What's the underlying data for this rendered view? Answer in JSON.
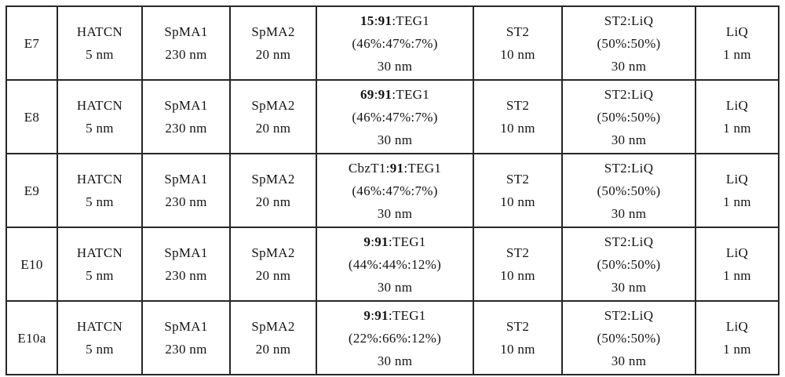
{
  "table": {
    "rows": [
      {
        "label": "E7",
        "cells": [
          {
            "lines": [
              "HATCN",
              "5 nm"
            ]
          },
          {
            "lines": [
              "SpMA1",
              "230 nm"
            ]
          },
          {
            "lines": [
              "SpMA2",
              "20 nm"
            ]
          },
          {
            "lines": [
              [
                {
                  "t": "15",
                  "b": true
                },
                {
                  "t": ":"
                },
                {
                  "t": "91",
                  "b": true
                },
                {
                  "t": ":TEG1"
                }
              ],
              "(46%:47%:7%)",
              "30 nm"
            ]
          },
          {
            "lines": [
              "ST2",
              "10 nm"
            ]
          },
          {
            "lines": [
              "ST2:LiQ",
              "(50%:50%)",
              "30 nm"
            ]
          },
          {
            "lines": [
              "LiQ",
              "1 nm"
            ]
          }
        ]
      },
      {
        "label": "E8",
        "cells": [
          {
            "lines": [
              "HATCN",
              "5 nm"
            ]
          },
          {
            "lines": [
              "SpMA1",
              "230 nm"
            ]
          },
          {
            "lines": [
              "SpMA2",
              "20 nm"
            ]
          },
          {
            "lines": [
              [
                {
                  "t": "69",
                  "b": true
                },
                {
                  "t": ":"
                },
                {
                  "t": "91",
                  "b": true
                },
                {
                  "t": ":TEG1"
                }
              ],
              "(46%:47%:7%)",
              "30 nm"
            ]
          },
          {
            "lines": [
              "ST2",
              "10 nm"
            ]
          },
          {
            "lines": [
              "ST2:LiQ",
              "(50%:50%)",
              "30 nm"
            ]
          },
          {
            "lines": [
              "LiQ",
              "1 nm"
            ]
          }
        ]
      },
      {
        "label": "E9",
        "cells": [
          {
            "lines": [
              "HATCN",
              "5 nm"
            ]
          },
          {
            "lines": [
              "SpMA1",
              "230 nm"
            ]
          },
          {
            "lines": [
              "SpMA2",
              "20 nm"
            ]
          },
          {
            "lines": [
              [
                {
                  "t": "CbzT1:"
                },
                {
                  "t": "91",
                  "b": true
                },
                {
                  "t": ":TEG1"
                }
              ],
              "(46%:47%:7%)",
              "30 nm"
            ]
          },
          {
            "lines": [
              "ST2",
              "10 nm"
            ]
          },
          {
            "lines": [
              "ST2:LiQ",
              "(50%:50%)",
              "30 nm"
            ]
          },
          {
            "lines": [
              "LiQ",
              "1 nm"
            ]
          }
        ]
      },
      {
        "label": "E10",
        "cells": [
          {
            "lines": [
              "HATCN",
              "5 nm"
            ]
          },
          {
            "lines": [
              "SpMA1",
              "230 nm"
            ]
          },
          {
            "lines": [
              "SpMA2",
              "20 nm"
            ]
          },
          {
            "lines": [
              [
                {
                  "t": "9",
                  "b": true
                },
                {
                  "t": ":"
                },
                {
                  "t": "91",
                  "b": true
                },
                {
                  "t": ":TEG1"
                }
              ],
              "(44%:44%:12%)",
              "30 nm"
            ]
          },
          {
            "lines": [
              "ST2",
              "10 nm"
            ]
          },
          {
            "lines": [
              "ST2:LiQ",
              "(50%:50%)",
              "30 nm"
            ]
          },
          {
            "lines": [
              "LiQ",
              "1 nm"
            ]
          }
        ]
      },
      {
        "label": "E10a",
        "cells": [
          {
            "lines": [
              "HATCN",
              "5 nm"
            ]
          },
          {
            "lines": [
              "SpMA1",
              "230 nm"
            ]
          },
          {
            "lines": [
              "SpMA2",
              "20 nm"
            ]
          },
          {
            "lines": [
              [
                {
                  "t": "9",
                  "b": true
                },
                {
                  "t": ":"
                },
                {
                  "t": "91",
                  "b": true
                },
                {
                  "t": ":TEG1"
                }
              ],
              "(22%:66%:12%)",
              "30 nm"
            ]
          },
          {
            "lines": [
              "ST2",
              "10 nm"
            ]
          },
          {
            "lines": [
              "ST2:LiQ",
              "(50%:50%)",
              "30 nm"
            ]
          },
          {
            "lines": [
              "LiQ",
              "1 nm"
            ]
          }
        ]
      }
    ]
  },
  "colors": {
    "border": "#272727",
    "text": "#141414",
    "background": "#ffffff"
  }
}
